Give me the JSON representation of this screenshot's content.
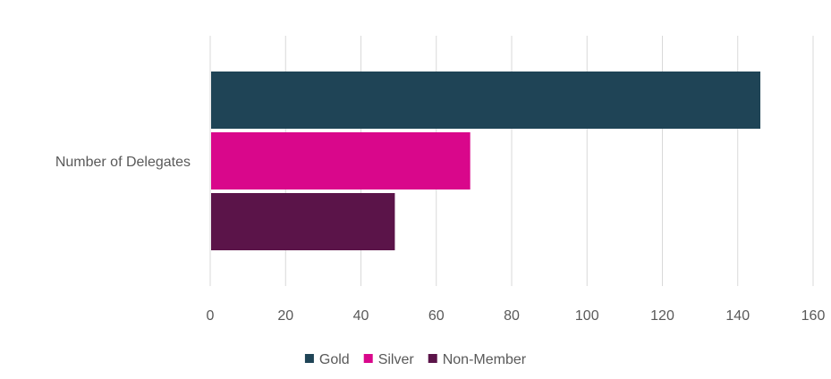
{
  "chart_data": {
    "type": "bar",
    "orientation": "horizontal",
    "categories": [
      "Number of Delegates"
    ],
    "series": [
      {
        "name": "Gold",
        "values": [
          146
        ],
        "color": "#1f4456"
      },
      {
        "name": "Silver",
        "values": [
          69
        ],
        "color": "#d9078b"
      },
      {
        "name": "Non-Member",
        "values": [
          49
        ],
        "color": "#5b1449"
      }
    ],
    "xlim": [
      0,
      160
    ],
    "xticks": [
      "0",
      "20",
      "40",
      "60",
      "80",
      "100",
      "120",
      "140",
      "160"
    ],
    "grid": true,
    "legend_position": "bottom",
    "title": "",
    "xlabel": "",
    "ylabel": ""
  }
}
